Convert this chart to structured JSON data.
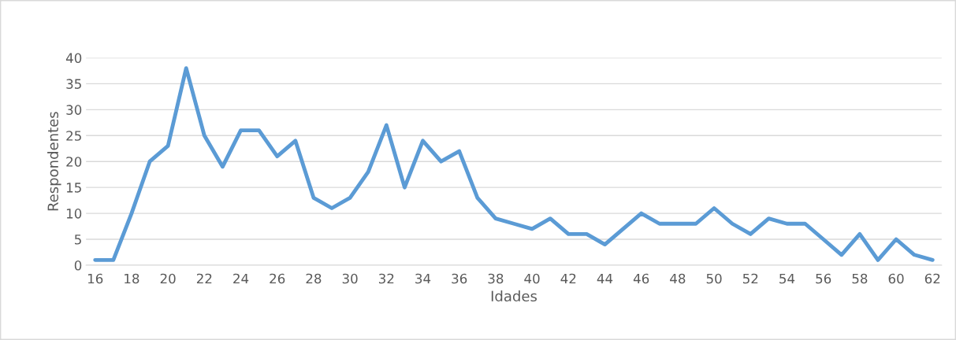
{
  "chart_data": {
    "type": "line",
    "xlabel": "Idades",
    "ylabel": "Respondentes",
    "categories": [
      "16",
      null,
      "18",
      null,
      "20",
      null,
      "22",
      null,
      "24",
      null,
      "26",
      null,
      "28",
      null,
      "30",
      null,
      "32",
      null,
      "34",
      null,
      "36",
      null,
      "38",
      null,
      "40",
      null,
      "42",
      null,
      "44",
      null,
      "46",
      null,
      "48",
      null,
      "50",
      null,
      "52",
      null,
      "54",
      null,
      "56",
      null,
      "58",
      null,
      "60",
      null,
      "62"
    ],
    "series": [
      {
        "color": "#5b9bd5",
        "values": [
          1,
          1,
          10,
          20,
          23,
          38,
          25,
          19,
          26,
          26,
          21,
          24,
          13,
          11,
          13,
          18,
          27,
          15,
          24,
          20,
          22,
          13,
          9,
          8,
          7,
          9,
          6,
          6,
          4,
          7,
          10,
          8,
          8,
          8,
          11,
          8,
          6,
          9,
          8,
          8,
          5,
          2,
          6,
          1,
          5,
          2,
          1
        ]
      }
    ],
    "ylim": [
      0,
      40
    ],
    "yticks": [
      0,
      5,
      10,
      15,
      20,
      25,
      30,
      35,
      40
    ],
    "grid": "y",
    "marker": "none",
    "line_style": "solid"
  }
}
